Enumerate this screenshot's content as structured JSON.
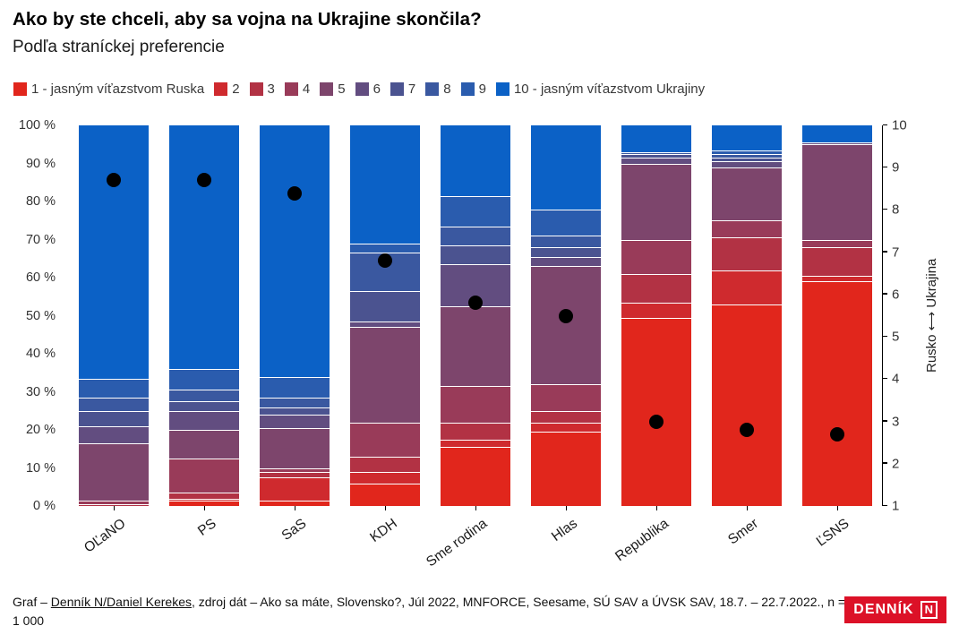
{
  "header": {
    "title": "Ako by ste chceli, aby sa vojna na Ukrajine skončila?",
    "subtitle": "Podľa straníckej preferencie"
  },
  "legend": {
    "items": [
      {
        "label": "1 - jasným víťazstvom Ruska",
        "color": "#e1261c"
      },
      {
        "label": "2",
        "color": "#cf2a2e"
      },
      {
        "label": "3",
        "color": "#b23244"
      },
      {
        "label": "4",
        "color": "#993b59"
      },
      {
        "label": "5",
        "color": "#7d456c"
      },
      {
        "label": "6",
        "color": "#624d80"
      },
      {
        "label": "7",
        "color": "#4b5390"
      },
      {
        "label": "8",
        "color": "#3a58a0"
      },
      {
        "label": "9",
        "color": "#2a5cae"
      },
      {
        "label": "10 - jasným víťazstvom Ukrajiny",
        "color": "#0b61c6"
      }
    ]
  },
  "chart_data": {
    "type": "bar",
    "stacked": true,
    "title": "Ako by ste chceli, aby sa vojna na Ukrajine skončila?",
    "subtitle": "Podľa straníckej preferencie",
    "categories": [
      "OĽaNO",
      "PS",
      "SaS",
      "KDH",
      "Sme rodina",
      "Hlas",
      "Republika",
      "Smer",
      "ĽSNS"
    ],
    "series": [
      {
        "name": "1",
        "color": "#e1261c",
        "values": [
          0,
          1.5,
          1.5,
          6,
          15.5,
          19.5,
          49.5,
          53,
          59
        ]
      },
      {
        "name": "2",
        "color": "#cf2a2e",
        "values": [
          0,
          0.5,
          6,
          3,
          2,
          2.5,
          4,
          9,
          1.5
        ]
      },
      {
        "name": "3",
        "color": "#b23244",
        "values": [
          0.5,
          1.5,
          1.5,
          4,
          4.5,
          3,
          7.5,
          8.5,
          7.5
        ]
      },
      {
        "name": "4",
        "color": "#993b59",
        "values": [
          1,
          9,
          1,
          9,
          9.5,
          7,
          9,
          4.5,
          2
        ]
      },
      {
        "name": "5",
        "color": "#7d456c",
        "values": [
          15,
          7.5,
          10.5,
          25,
          21,
          31,
          20,
          14,
          25
        ]
      },
      {
        "name": "6",
        "color": "#624d80",
        "values": [
          4.5,
          5,
          3.5,
          1.5,
          11,
          2.5,
          1.5,
          1.5,
          0.5
        ]
      },
      {
        "name": "7",
        "color": "#4b5390",
        "values": [
          4,
          2.5,
          2,
          8,
          5,
          2.5,
          1,
          1,
          0
        ]
      },
      {
        "name": "8",
        "color": "#3a58a0",
        "values": [
          3.5,
          3,
          2.5,
          10,
          5,
          3,
          0.5,
          1,
          0
        ]
      },
      {
        "name": "9",
        "color": "#2a5cae",
        "values": [
          5,
          5.5,
          5.5,
          2.5,
          8,
          7,
          0,
          1,
          0
        ]
      },
      {
        "name": "10",
        "color": "#0b61c6",
        "values": [
          66.5,
          64,
          66,
          31,
          18.5,
          22,
          7,
          6.5,
          4.5
        ]
      }
    ],
    "means": {
      "scale": [
        1,
        10
      ],
      "values": [
        8.7,
        8.7,
        8.4,
        6.8,
        5.8,
        5.5,
        3.0,
        2.8,
        2.7
      ],
      "dot_color": "#000000"
    },
    "left_axis": {
      "ticks": [
        "0 %",
        "10 %",
        "20 %",
        "30 %",
        "40 %",
        "50 %",
        "60 %",
        "70 %",
        "80 %",
        "90 %",
        "100 %"
      ],
      "range": [
        0,
        100
      ]
    },
    "right_axis": {
      "ticks": [
        "1",
        "2",
        "3",
        "4",
        "5",
        "6",
        "7",
        "8",
        "9",
        "10"
      ],
      "label": "Rusko ⟷ Ukrajina",
      "range": [
        1,
        10
      ]
    }
  },
  "footer": {
    "prefix": "Graf – ",
    "credit": "Denník N/Daniel Kerekes",
    "suffix": ", zdroj dát – Ako sa máte, Slovensko?, Júl 2022, MNFORCE, Seesame, SÚ SAV a ÚVSK SAV, 18.7. – 22.7.2022., n = 1 000",
    "logo": {
      "text": "DENNÍK",
      "n": "N",
      "bg": "#dc1127"
    }
  }
}
